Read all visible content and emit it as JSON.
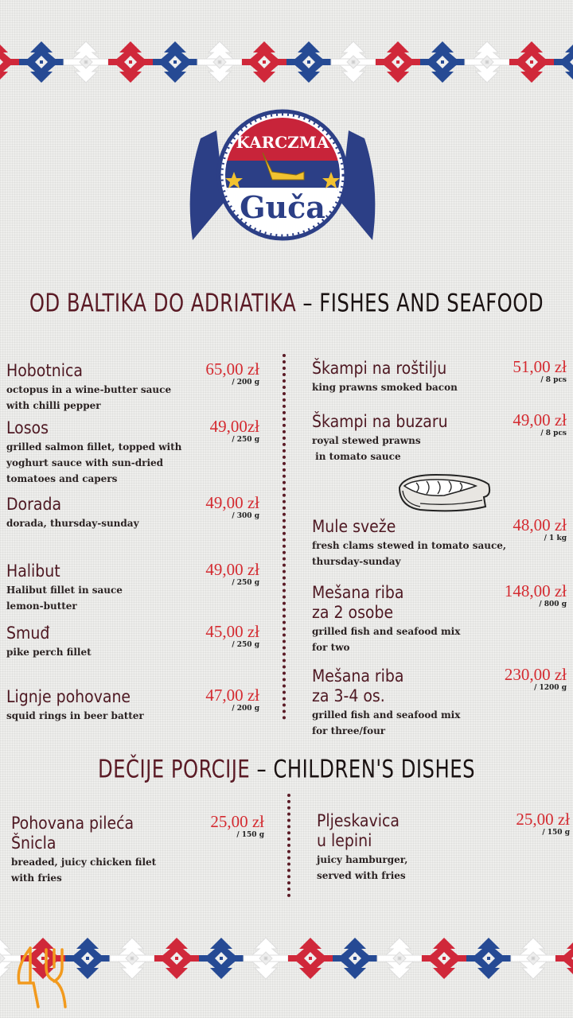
{
  "logo": {
    "top_text": "KARCZMA",
    "main_text": "Guča",
    "colors": {
      "red": "#c8243a",
      "blue": "#2c3f86",
      "gold": "#f2c230"
    }
  },
  "sections": {
    "fish": {
      "title_native": "OD BALTIKA DO ADRIATIKA",
      "title_sep": " – ",
      "title_english": "FISHES AND SEAFOOD",
      "left": [
        {
          "name": "Hobotnica",
          "desc": [
            "octopus in a wine-butter sauce",
            "with chilli pepper"
          ],
          "price": "65,00 zł",
          "weight": "/ 200 g"
        },
        {
          "name": "Losos",
          "desc": [
            "grilled salmon fillet, topped with",
            "yoghurt sauce with sun-dried",
            "tomatoes and capers"
          ],
          "price": "49,00zł",
          "weight": "/ 250 g"
        },
        {
          "name": "Dorada",
          "desc": [
            "dorada, thursday-sunday"
          ],
          "price": "49,00 zł",
          "weight": "/ 300 g"
        },
        {
          "name": "Halibut",
          "desc": [
            "Halibut fillet in sauce",
            "lemon-butter"
          ],
          "price": "49,00 zł",
          "weight": "/ 250 g"
        },
        {
          "name": "Smuđ",
          "desc": [
            "pike perch fillet"
          ],
          "price": "45,00 zł",
          "weight": "/ 250 g"
        },
        {
          "name": "Lignje pohovane",
          "desc": [
            "squid rings in beer batter"
          ],
          "price": "47,00 zł",
          "weight": "/ 200 g"
        }
      ],
      "right": [
        {
          "name": "Škampi na roštilju",
          "desc": [
            "king prawns smoked bacon"
          ],
          "price": "51,00 zł",
          "weight": "/ 8 pcs"
        },
        {
          "name": "Škampi na buzaru",
          "desc": [
            "royal stewed prawns",
            " in tomato sauce"
          ],
          "price": "49,00 zł",
          "weight": "/ 8 pcs"
        },
        {
          "name": "Mule sveže",
          "desc": [
            "fresh clams stewed in tomato sauce,",
            "thursday-sunday"
          ],
          "price": "48,00 zł",
          "weight": "/ 1 kg"
        },
        {
          "name": "Mešana riba\nza 2 osobe",
          "desc": [
            "grilled fish and seafood mix",
            "for two"
          ],
          "price": "148,00 zł",
          "weight": "/ 800 g"
        },
        {
          "name": "Mešana riba\nza 3-4 os.",
          "desc": [
            "grilled fish and seafood mix",
            "for three/four"
          ],
          "price": "230,00 zł",
          "weight": "/ 1200 g"
        }
      ]
    },
    "kids": {
      "title_native": "DEČIJE PORCIJE",
      "title_sep": " – ",
      "title_english": "CHILDREN'S DISHES",
      "left": [
        {
          "name": "Pohovana pileća\nŠnicla",
          "desc": [
            "breaded, juicy chicken filet",
            "with fries"
          ],
          "price": "25,00 zł",
          "weight": "/ 150 g"
        }
      ],
      "right": [
        {
          "name": "Pljeskavica\nu lepini",
          "desc": [
            "juicy hamburger,",
            "served with fries"
          ],
          "price": "25,00 zł",
          "weight": "/ 150 g"
        }
      ]
    }
  },
  "decor": {
    "border_pattern_colors": [
      "#d0283a",
      "#264a94",
      "#ffffff"
    ],
    "watermark_icon": "fork-knife-icon",
    "watermark_color": "#f29a1e",
    "illustration": "salmon-steak-icon"
  }
}
